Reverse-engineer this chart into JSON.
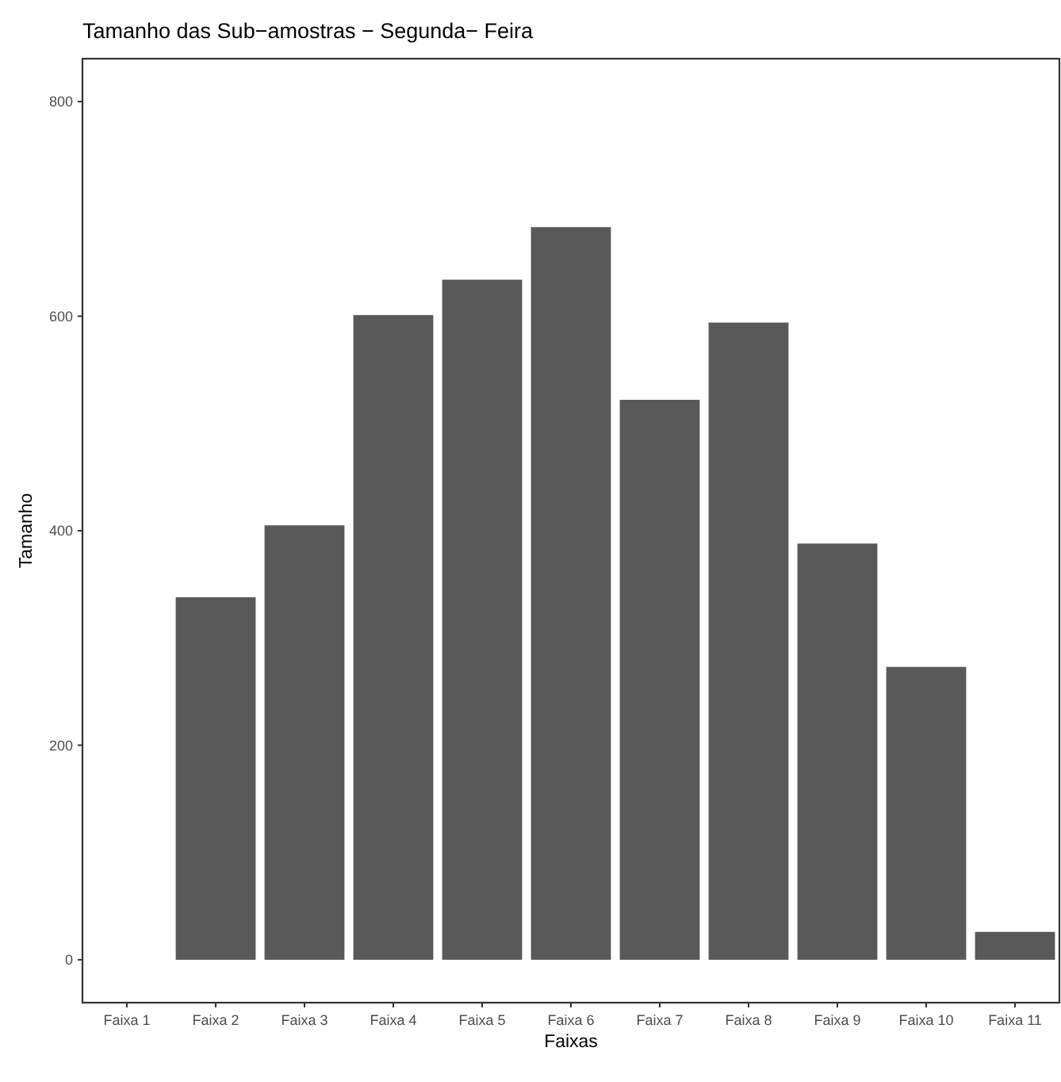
{
  "chart_data": {
    "type": "bar",
    "title": "Tamanho das Sub−amostras − Segunda− Feira",
    "xlabel": "Faixas",
    "ylabel": "Tamanho",
    "categories": [
      "Faixa 1",
      "Faixa 2",
      "Faixa 3",
      "Faixa 4",
      "Faixa 5",
      "Faixa 6",
      "Faixa 7",
      "Faixa 8",
      "Faixa 9",
      "Faixa 10",
      "Faixa 11"
    ],
    "values": [
      0,
      338,
      405,
      601,
      634,
      683,
      522,
      594,
      388,
      273,
      26
    ],
    "color": "#595959",
    "ylim": [
      -40,
      840
    ],
    "yticks": [
      0,
      200,
      400,
      600,
      800
    ],
    "grid": false
  }
}
